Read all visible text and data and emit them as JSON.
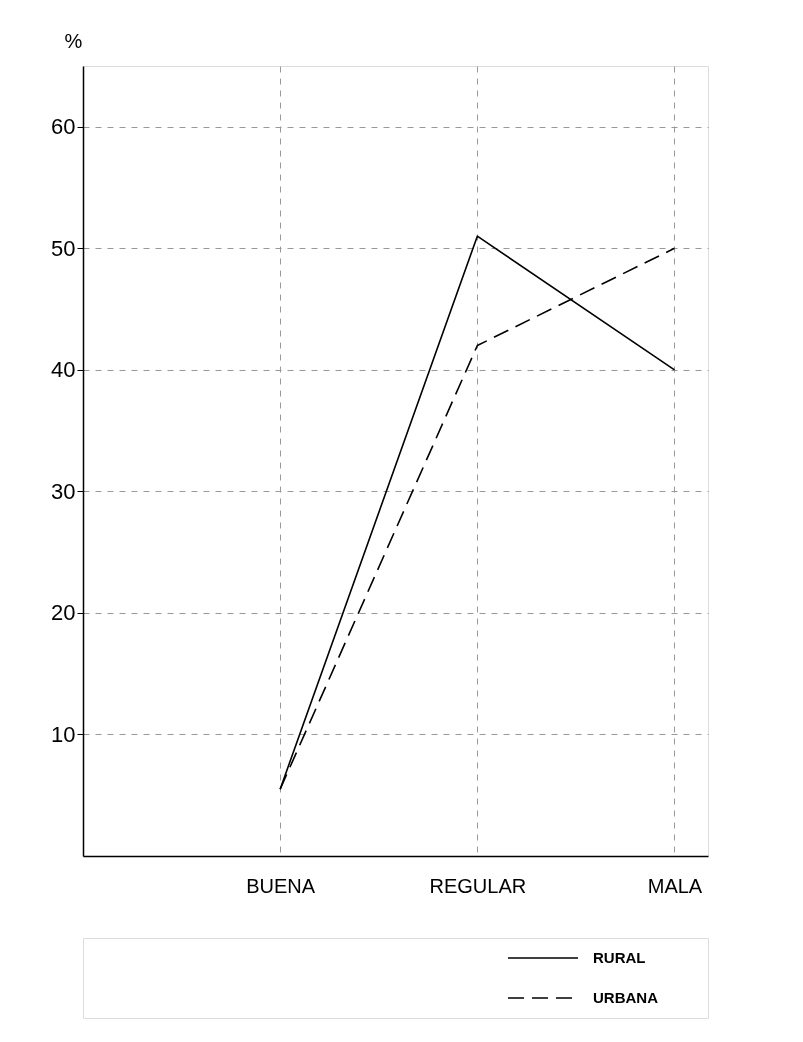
{
  "chart_data": {
    "type": "line",
    "ylabel": "%",
    "categories": [
      "BUENA",
      "REGULAR",
      "MALA"
    ],
    "series": [
      {
        "name": "RURAL",
        "color": "#000000",
        "line_style": "solid",
        "values": [
          5.5,
          51,
          40
        ]
      },
      {
        "name": "URBANA",
        "color": "#000000",
        "line_style": "dashed",
        "values": [
          5.5,
          42,
          50
        ]
      }
    ],
    "ylim": [
      0,
      65
    ],
    "yticks": [
      10,
      20,
      30,
      40,
      50,
      60
    ],
    "grid": true,
    "legend": "bottom right",
    "marker": "none"
  }
}
